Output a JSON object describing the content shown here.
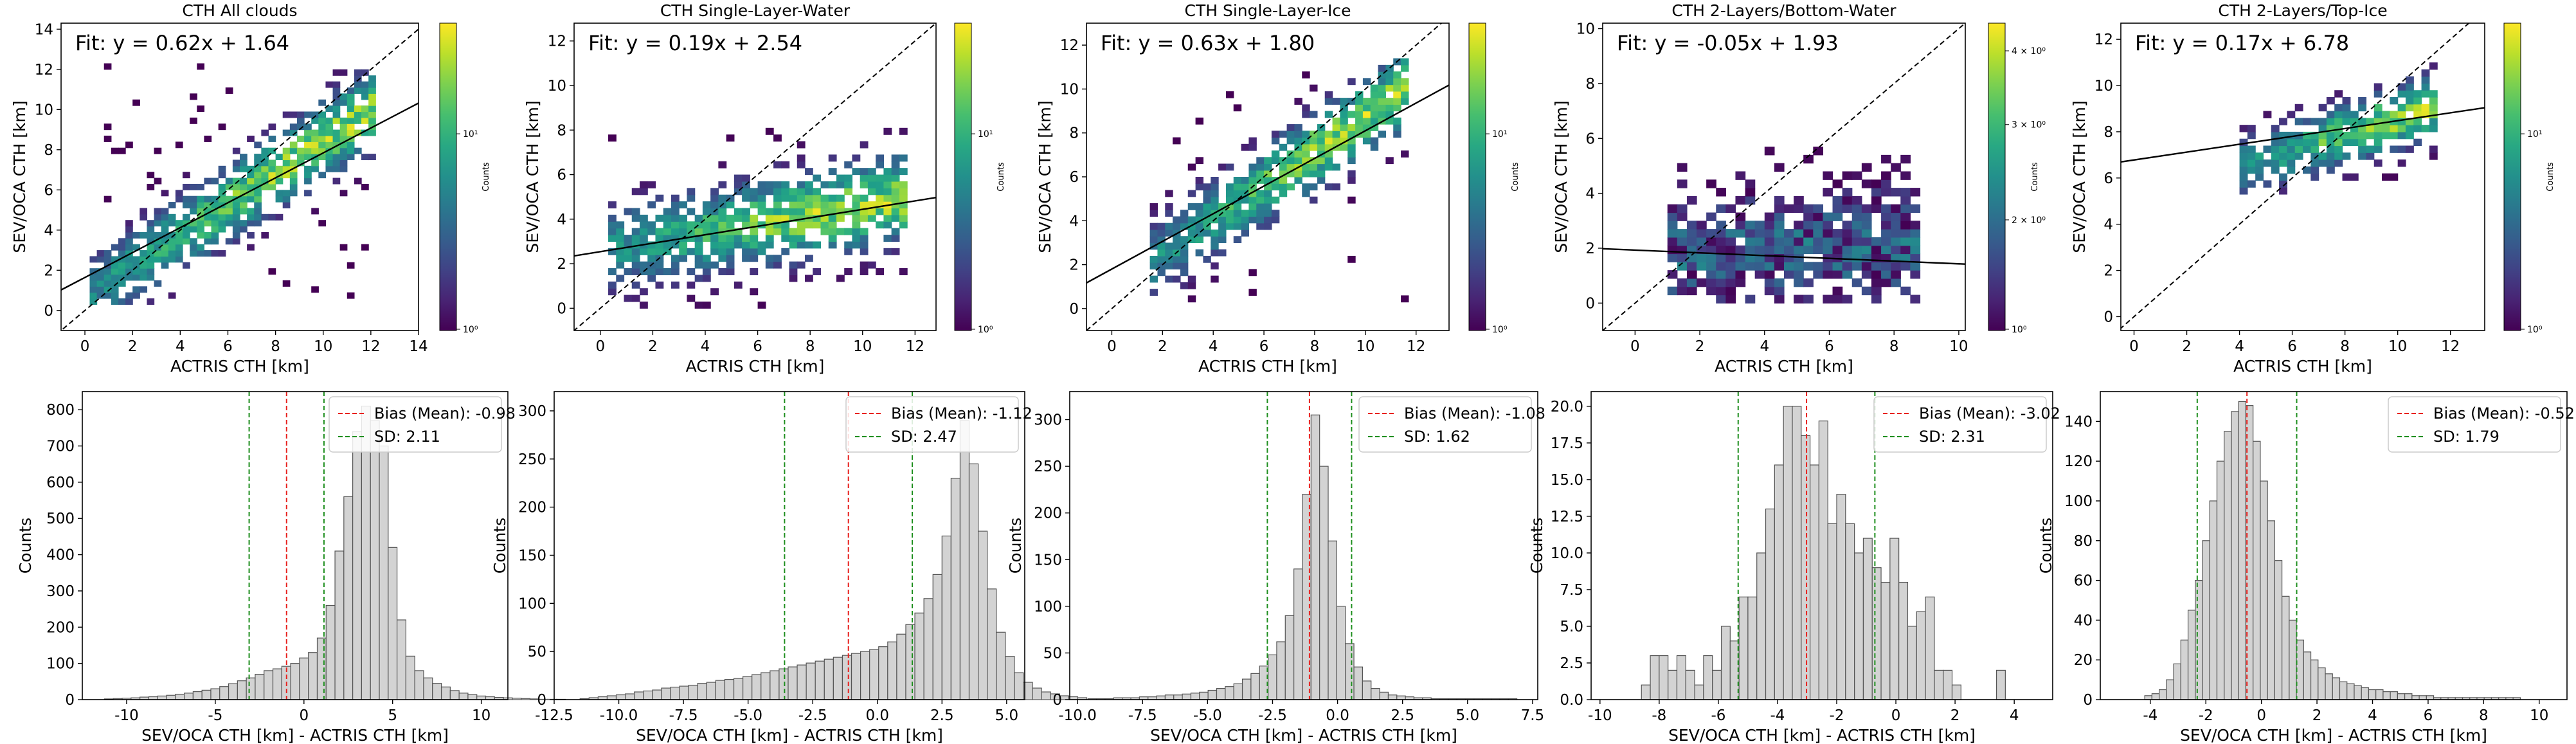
{
  "chart_data": [
    {
      "type": "heatmap",
      "title": "CTH All clouds",
      "xlabel": "ACTRIS CTH [km]",
      "ylabel": "SEV/OCA CTH [km]",
      "xlim": [
        -1,
        14
      ],
      "ylim": [
        -1,
        14.3
      ],
      "xticks": [
        0,
        2,
        4,
        6,
        8,
        10,
        12,
        14
      ],
      "yticks": [
        0,
        2,
        4,
        6,
        8,
        10,
        12,
        14
      ],
      "fit_label": "Fit: y = 0.62x + 1.64",
      "fit": {
        "slope": 0.62,
        "intercept": 1.64
      },
      "colorbar": {
        "label": "Counts",
        "scale": "log",
        "ticks": [
          "10⁰",
          "10¹"
        ]
      },
      "density": {
        "slope": 0.78,
        "intercept": 0.6,
        "spread": 1.3,
        "x_range": [
          0.2,
          12.2
        ],
        "y_range": [
          0,
          12.2
        ]
      }
    },
    {
      "type": "heatmap",
      "title": "CTH Single-Layer-Water",
      "xlabel": "ACTRIS CTH [km]",
      "ylabel": "SEV/OCA CTH [km]",
      "xlim": [
        -1,
        12.8
      ],
      "ylim": [
        -1,
        12.8
      ],
      "xticks": [
        0,
        2,
        4,
        6,
        8,
        10,
        12
      ],
      "yticks": [
        0,
        2,
        4,
        6,
        8,
        10,
        12
      ],
      "fit_label": "Fit: y = 0.19x + 2.54",
      "fit": {
        "slope": 0.19,
        "intercept": 2.54
      },
      "colorbar": {
        "label": "Counts",
        "scale": "log",
        "ticks": [
          "10⁰",
          "10¹"
        ]
      },
      "density": {
        "slope": 0.2,
        "intercept": 2.5,
        "spread": 1.3,
        "x_range": [
          0.3,
          11.5
        ],
        "y_range": [
          0,
          8
        ]
      }
    },
    {
      "type": "heatmap",
      "title": "CTH Single-Layer-Ice",
      "xlabel": "ACTRIS CTH [km]",
      "ylabel": "SEV/OCA CTH [km]",
      "xlim": [
        -1,
        13.3
      ],
      "ylim": [
        -1,
        13
      ],
      "xticks": [
        0,
        2,
        4,
        6,
        8,
        10,
        12
      ],
      "yticks": [
        0,
        2,
        4,
        6,
        8,
        10,
        12
      ],
      "fit_label": "Fit: y = 0.63x + 1.80",
      "fit": {
        "slope": 0.63,
        "intercept": 1.8
      },
      "colorbar": {
        "label": "Counts",
        "scale": "log",
        "ticks": [
          "10⁰",
          "10¹"
        ]
      },
      "density": {
        "slope": 0.78,
        "intercept": 0.9,
        "spread": 1.2,
        "x_range": [
          1.5,
          11.5
        ],
        "y_range": [
          0,
          11.5
        ]
      }
    },
    {
      "type": "heatmap",
      "title": "CTH 2-Layers/Bottom-Water",
      "xlabel": "ACTRIS CTH [km]",
      "ylabel": "SEV/OCA CTH [km]",
      "xlim": [
        -1,
        10.2
      ],
      "ylim": [
        -1,
        10.2
      ],
      "xticks": [
        0,
        2,
        4,
        6,
        8,
        10
      ],
      "yticks": [
        0,
        2,
        4,
        6,
        8,
        10
      ],
      "fit_label": "Fit: y = -0.05x + 1.93",
      "fit": {
        "slope": -0.05,
        "intercept": 1.93
      },
      "colorbar": {
        "label": "Counts",
        "scale": "log",
        "ticks": [
          "4 × 10⁰",
          "3 × 10⁰",
          "2 × 10⁰",
          "10⁰"
        ]
      },
      "density": {
        "slope": 0.05,
        "intercept": 1.6,
        "spread": 1.4,
        "x_range": [
          1,
          8.7
        ],
        "y_range": [
          0,
          6.3
        ]
      }
    },
    {
      "type": "heatmap",
      "title": "CTH 2-Layers/Top-Ice",
      "xlabel": "ACTRIS CTH [km]",
      "ylabel": "SEV/OCA CTH [km]",
      "xlim": [
        -0.5,
        13.3
      ],
      "ylim": [
        -0.6,
        12.7
      ],
      "xticks": [
        0,
        2,
        4,
        6,
        8,
        10,
        12
      ],
      "yticks": [
        0,
        2,
        4,
        6,
        8,
        10,
        12
      ],
      "fit_label": "Fit: y = 0.17x + 6.78",
      "fit": {
        "slope": 0.17,
        "intercept": 6.78
      },
      "colorbar": {
        "label": "Counts",
        "scale": "log",
        "ticks": [
          "10⁰",
          "10¹"
        ]
      },
      "density": {
        "slope": 0.35,
        "intercept": 5.0,
        "spread": 0.9,
        "x_range": [
          4,
          11.5
        ],
        "y_range": [
          5.3,
          11
        ]
      }
    },
    {
      "type": "bar",
      "subtype": "histogram",
      "xlabel": "SEV/OCA CTH [km] - ACTRIS CTH [km]",
      "ylabel": "Counts",
      "xlim": [
        -12.5,
        11.5
      ],
      "ylim": [
        0,
        850
      ],
      "xticks": [
        -10,
        -5,
        0,
        5,
        10
      ],
      "yticks": [
        0,
        100,
        200,
        300,
        400,
        500,
        600,
        700,
        800
      ],
      "bias_label": "Bias (Mean): -0.98",
      "bias": -0.98,
      "sd_label": "SD: 2.11",
      "sd": 2.11,
      "bins": {
        "start": -11.25,
        "width": 0.5
      },
      "values": [
        2,
        3,
        4,
        5,
        7,
        8,
        10,
        12,
        15,
        18,
        22,
        26,
        30,
        36,
        44,
        52,
        60,
        70,
        80,
        85,
        92,
        100,
        115,
        130,
        170,
        260,
        410,
        560,
        740,
        810,
        770,
        700,
        420,
        220,
        120,
        80,
        60,
        45,
        35,
        25,
        18,
        14,
        10,
        8,
        6,
        5,
        4,
        3,
        2,
        1,
        1,
        1
      ]
    },
    {
      "type": "bar",
      "subtype": "histogram",
      "xlabel": "SEV/OCA CTH [km] - ACTRIS CTH [km]",
      "ylabel": "Counts",
      "xlim": [
        -12.5,
        5.7
      ],
      "ylim": [
        0,
        320
      ],
      "xticks": [
        -12.5,
        -10.0,
        -7.5,
        -5.0,
        -2.5,
        0.0,
        2.5,
        5.0
      ],
      "ytick_labels": [
        "0",
        "50",
        "100",
        "150",
        "200",
        "250",
        "300"
      ],
      "yticks": [
        0,
        50,
        100,
        150,
        200,
        250,
        300
      ],
      "bias_label": "Bias (Mean): -1.12",
      "bias": -1.12,
      "sd_label": "SD: 2.47",
      "sd": 2.47,
      "bins": {
        "start": -11.5,
        "width": 0.35
      },
      "values": [
        1,
        2,
        3,
        4,
        5,
        6,
        8,
        9,
        10,
        12,
        13,
        14,
        15,
        17,
        18,
        20,
        21,
        22,
        24,
        26,
        28,
        30,
        32,
        34,
        36,
        38,
        40,
        42,
        44,
        46,
        48,
        50,
        52,
        55,
        60,
        68,
        78,
        90,
        105,
        130,
        170,
        230,
        290,
        245,
        175,
        115,
        70,
        45,
        28,
        18,
        12,
        8,
        6,
        4,
        3,
        2
      ]
    },
    {
      "type": "bar",
      "subtype": "histogram",
      "xlabel": "SEV/OCA CTH [km] - ACTRIS CTH [km]",
      "ylabel": "Counts",
      "xlim": [
        -10.3,
        7.7
      ],
      "ylim": [
        0,
        330
      ],
      "xticks": [
        -10.0,
        -7.5,
        -5.0,
        -2.5,
        0.0,
        2.5,
        5.0,
        7.5
      ],
      "ytick_labels": [
        "0",
        "50",
        "100",
        "150",
        "200",
        "250",
        "300"
      ],
      "yticks": [
        0,
        50,
        100,
        150,
        200,
        250,
        300
      ],
      "bias_label": "Bias (Mean): -1.08",
      "bias": -1.08,
      "sd_label": "SD: 1.62",
      "sd": 1.62,
      "bins": {
        "start": -9.6,
        "width": 0.33
      },
      "values": [
        1,
        1,
        1,
        2,
        2,
        2,
        3,
        3,
        4,
        5,
        5,
        6,
        7,
        8,
        10,
        12,
        14,
        17,
        22,
        28,
        36,
        48,
        62,
        90,
        140,
        220,
        305,
        250,
        170,
        100,
        60,
        35,
        20,
        12,
        8,
        5,
        4,
        3,
        2,
        2,
        1,
        1,
        1,
        1,
        1,
        1,
        1,
        1,
        1,
        1
      ]
    },
    {
      "type": "bar",
      "subtype": "histogram",
      "xlabel": "SEV/OCA CTH [km] - ACTRIS CTH [km]",
      "ylabel": "Counts",
      "xlim": [
        -10.3,
        5.3
      ],
      "ylim": [
        0,
        21
      ],
      "xticks": [
        -10,
        -8,
        -6,
        -4,
        -2,
        0,
        2,
        4
      ],
      "ytick_labels": [
        "0.0",
        "2.5",
        "5.0",
        "7.5",
        "10.0",
        "12.5",
        "15.0",
        "17.5",
        "20.0"
      ],
      "yticks": [
        0,
        2.5,
        5,
        7.5,
        10,
        12.5,
        15,
        17.5,
        20
      ],
      "bias_label": "Bias (Mean): -3.02",
      "bias": -3.02,
      "sd_label": "SD: 2.31",
      "sd": 2.31,
      "bins": {
        "start": -8.6,
        "width": 0.3
      },
      "values": [
        1,
        3,
        3,
        2,
        3,
        2,
        1,
        3,
        2,
        5,
        4,
        7,
        7,
        10,
        13,
        16,
        20,
        20,
        18,
        16,
        19,
        12,
        14,
        12,
        10,
        11,
        9,
        8,
        11,
        8,
        5,
        6,
        7,
        2,
        2,
        1,
        0,
        0,
        0,
        0,
        2
      ]
    },
    {
      "type": "bar",
      "subtype": "histogram",
      "xlabel": "SEV/OCA CTH [km] - ACTRIS CTH [km]",
      "ylabel": "Counts",
      "xlim": [
        -5.8,
        11
      ],
      "ylim": [
        0,
        155
      ],
      "xticks": [
        -4,
        -2,
        0,
        2,
        4,
        6,
        8,
        10
      ],
      "yticks": [
        0,
        20,
        40,
        60,
        80,
        100,
        120,
        140
      ],
      "bias_label": "Bias (Mean): -0.52",
      "bias": -0.52,
      "sd_label": "SD: 1.79",
      "sd": 1.79,
      "bins": {
        "start": -4.2,
        "width": 0.26
      },
      "values": [
        2,
        3,
        5,
        10,
        18,
        30,
        45,
        60,
        80,
        100,
        120,
        135,
        145,
        150,
        148,
        130,
        110,
        90,
        70,
        52,
        40,
        30,
        24,
        20,
        16,
        13,
        11,
        9,
        8,
        7,
        6,
        5,
        5,
        4,
        4,
        3,
        3,
        2,
        2,
        2,
        1,
        1,
        1,
        1,
        1,
        1,
        1,
        1,
        1,
        1,
        1,
        1
      ]
    }
  ]
}
